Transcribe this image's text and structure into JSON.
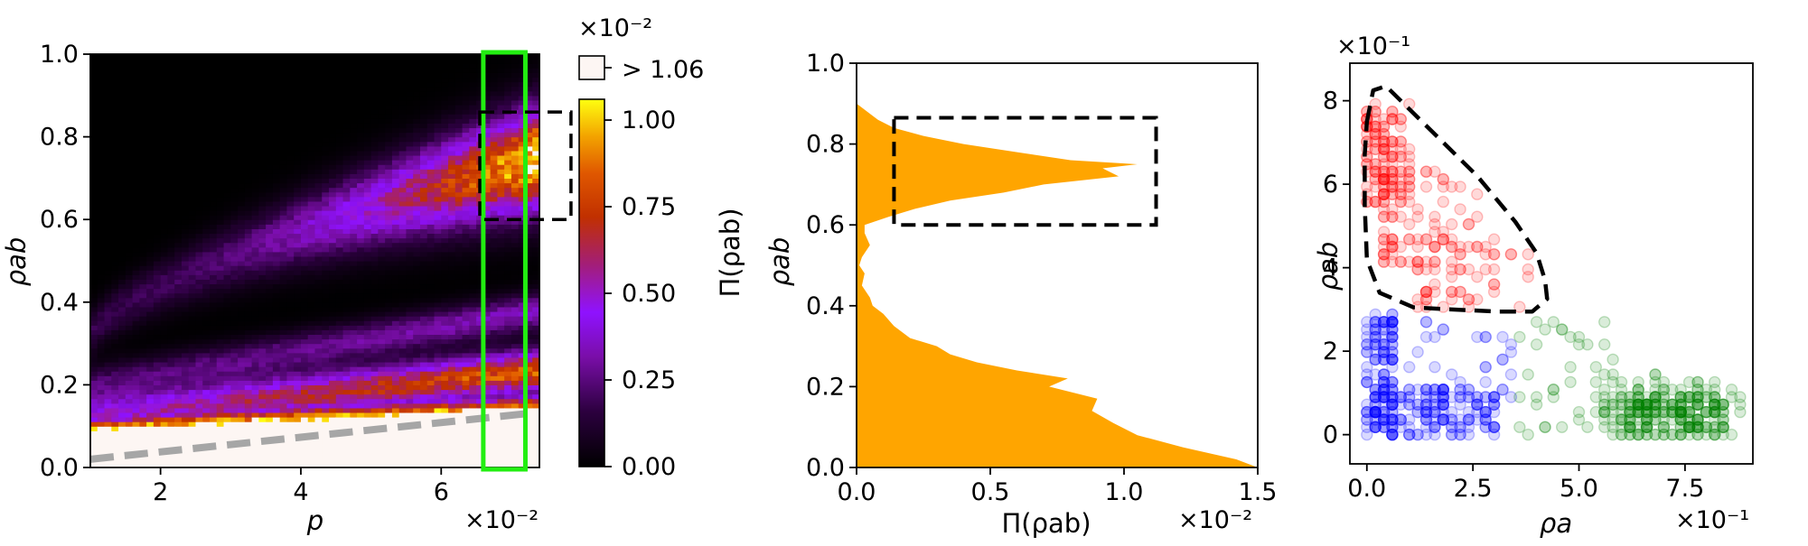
{
  "chart_data": [
    {
      "type": "heatmap",
      "xlabel": "p",
      "ylabel": "ρab",
      "x_multiplier": "×10⁻²",
      "xlim": [
        1,
        7.4
      ],
      "ylim": [
        0,
        1
      ],
      "xticks": [
        2,
        4,
        6
      ],
      "yticks": [
        0.0,
        0.2,
        0.4,
        0.6,
        0.8,
        1.0
      ],
      "colormap": "gnuplot",
      "colorbar": {
        "multiplier": "×10⁻²",
        "range": [
          0,
          1.06
        ],
        "ticks": [
          0.0,
          0.25,
          0.5,
          0.75,
          1.0
        ],
        "over_label": "> 1.06",
        "over_color": "#fdf6f3"
      },
      "bands": [
        {
          "p": [
            1,
            7.4
          ],
          "rho_center": [
            0.12,
            0.235
          ],
          "peak": 1.06
        },
        {
          "p": [
            1,
            7.4
          ],
          "rho_center": [
            0.2,
            0.38
          ],
          "peak": 0.35
        },
        {
          "p": [
            1,
            7.4
          ],
          "rho_center": [
            0.32,
            0.75
          ],
          "peak": 0.9
        }
      ],
      "overflow_boundary": {
        "p": [
          1,
          7.4
        ],
        "rho": [
          0.08,
          0.145
        ]
      },
      "dashed_line": {
        "p": [
          1,
          7.2
        ],
        "rho": [
          0.02,
          0.13
        ],
        "color": "#a6a6a6"
      },
      "highlight_column": {
        "p": [
          6.6,
          7.2
        ],
        "rho": [
          0,
          1
        ],
        "color": "#22ee11"
      },
      "dashed_box": {
        "p": [
          6.55,
          7.85
        ],
        "rho": [
          0.6,
          0.86
        ]
      }
    },
    {
      "type": "area",
      "orientation": "horizontal",
      "xlabel": "Π(ρab)",
      "ylabel": "ρab",
      "x_multiplier": "×10⁻²",
      "xlim": [
        0,
        1.5
      ],
      "ylim": [
        0,
        1
      ],
      "xticks": [
        0.0,
        0.5,
        1.0,
        1.5
      ],
      "yticks": [
        0.0,
        0.2,
        0.4,
        0.6,
        0.8,
        1.0
      ],
      "color": "#ffa500",
      "profile_rho": [
        0.0,
        0.02,
        0.05,
        0.08,
        0.11,
        0.14,
        0.17,
        0.2,
        0.22,
        0.24,
        0.26,
        0.28,
        0.3,
        0.32,
        0.35,
        0.38,
        0.4,
        0.42,
        0.45,
        0.48,
        0.5,
        0.52,
        0.55,
        0.58,
        0.6,
        0.62,
        0.64,
        0.66,
        0.68,
        0.7,
        0.72,
        0.74,
        0.75,
        0.76,
        0.78,
        0.8,
        0.82,
        0.84,
        0.86,
        0.88,
        0.9
      ],
      "profile_pi": [
        1.5,
        1.42,
        1.22,
        1.05,
        0.96,
        0.88,
        0.9,
        0.72,
        0.79,
        0.6,
        0.45,
        0.35,
        0.3,
        0.2,
        0.14,
        0.1,
        0.06,
        0.05,
        0.02,
        0.03,
        0.01,
        0.02,
        0.05,
        0.03,
        0.03,
        0.12,
        0.22,
        0.35,
        0.55,
        0.7,
        0.98,
        0.92,
        1.05,
        0.8,
        0.6,
        0.4,
        0.25,
        0.14,
        0.08,
        0.04,
        0.0
      ],
      "dashed_box": {
        "x": [
          0.14,
          1.12
        ],
        "rho": [
          0.6,
          0.865
        ]
      }
    },
    {
      "type": "scatter",
      "xlabel": "ρa",
      "ylabel": "ρab",
      "x_multiplier": "×10⁻¹",
      "y_multiplier": "×10⁻¹",
      "xlim": [
        -0.4,
        9.1
      ],
      "ylim": [
        -0.7,
        8.9
      ],
      "xticks": [
        0.0,
        2.5,
        5.0,
        7.5
      ],
      "yticks": [
        0,
        2,
        4,
        6,
        8
      ],
      "series": [
        {
          "color": "#ff0000",
          "alpha": 0.15,
          "clusters": [
            {
              "x": [
                0,
                1.0
              ],
              "y": [
                5.5,
                8.0
              ],
              "n": 110
            },
            {
              "x": [
                0.3,
                2.6
              ],
              "y": [
                4.0,
                6.3
              ],
              "n": 90
            },
            {
              "x": [
                1.2,
                3.9
              ],
              "y": [
                3.1,
                4.8
              ],
              "n": 60
            }
          ]
        },
        {
          "color": "#0000ff",
          "alpha": 0.15,
          "clusters": [
            {
              "x": [
                0,
                0.7
              ],
              "y": [
                0,
                2.9
              ],
              "n": 140
            },
            {
              "x": [
                0,
                3.0
              ],
              "y": [
                0,
                1.1
              ],
              "n": 150
            },
            {
              "x": [
                1.0,
                3.6
              ],
              "y": [
                0.2,
                2.7
              ],
              "n": 45
            }
          ]
        },
        {
          "color": "#008000",
          "alpha": 0.15,
          "clusters": [
            {
              "x": [
                6.0,
                8.5
              ],
              "y": [
                0,
                1.0
              ],
              "n": 180
            },
            {
              "x": [
                5.5,
                8.8
              ],
              "y": [
                0,
                1.4
              ],
              "n": 90
            },
            {
              "x": [
                3.6,
                6.0
              ],
              "y": [
                0,
                2.8
              ],
              "n": 40
            }
          ]
        }
      ],
      "dashed_outline": {
        "x": [
          0.0,
          0.15,
          0.45,
          1.5,
          2.6,
          3.5,
          4.0,
          4.2,
          4.25,
          3.9,
          3.1,
          2.0,
          1.1,
          0.3,
          0.0,
          -0.05,
          -0.05,
          0.0
        ],
        "y": [
          7.5,
          8.25,
          8.35,
          7.3,
          6.2,
          5.1,
          4.35,
          3.7,
          3.25,
          2.95,
          2.95,
          3.0,
          3.05,
          3.4,
          4.2,
          5.5,
          6.7,
          7.5
        ]
      }
    }
  ]
}
